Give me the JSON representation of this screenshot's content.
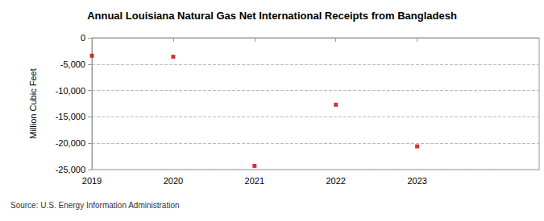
{
  "chart_data": {
    "type": "scatter",
    "title": "Annual Louisiana Natural Gas Net International Receipts from Bangladesh",
    "y_label": "Million Cubic Feet",
    "source": "Source: U.S. Energy Information Administration",
    "x": [
      2019,
      2020,
      2021,
      2022,
      2023
    ],
    "values": [
      -3400,
      -3600,
      -24300,
      -12700,
      -20600
    ],
    "color": "#cc0000",
    "marker": "square",
    "xlim": [
      2019,
      2024.5
    ],
    "xticks": [
      2019,
      2020,
      2021,
      2022,
      2023
    ],
    "ylim": [
      -25000,
      0
    ],
    "yticks": [
      {
        "value": -25000,
        "label": "-25,000"
      },
      {
        "value": -20000,
        "label": "-20,000"
      },
      {
        "value": -15000,
        "label": "-15,000"
      },
      {
        "value": -10000,
        "label": "-10,000"
      },
      {
        "value": -5000,
        "label": "-5,000"
      },
      0
    ],
    "grid": true
  }
}
